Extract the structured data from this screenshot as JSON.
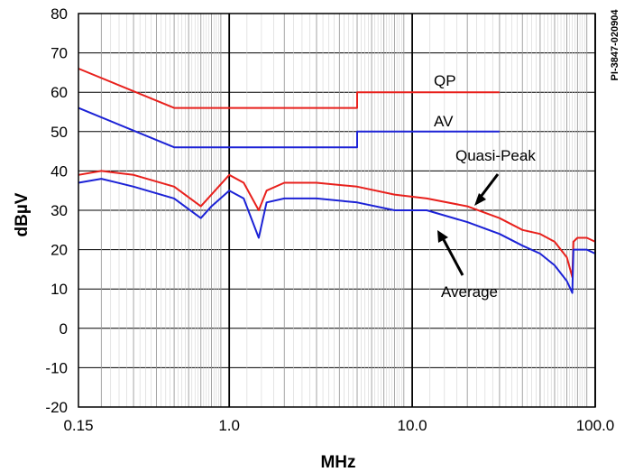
{
  "chart_data": {
    "type": "line",
    "xlabel": "MHz",
    "ylabel": "dBµV",
    "x_scale": "log",
    "xlim": [
      0.15,
      100.0
    ],
    "ylim": [
      -20,
      80
    ],
    "x_ticks": [
      0.15,
      1.0,
      10.0,
      100.0
    ],
    "x_tick_labels": [
      "0.15",
      "1.0",
      "10.0",
      "100.0"
    ],
    "y_ticks": [
      -20,
      -10,
      0,
      10,
      20,
      30,
      40,
      50,
      60,
      70,
      80
    ],
    "y_tick_labels": [
      "-20",
      "-10",
      "0",
      "10",
      "20",
      "30",
      "40",
      "50",
      "60",
      "70",
      "80"
    ],
    "grid": true,
    "figure_id": "PI-3847-020904",
    "series": [
      {
        "name": "QP",
        "color": "#e8201c",
        "x": [
          0.15,
          0.5,
          0.5,
          5.0,
          5.0,
          30.0
        ],
        "y": [
          66,
          56,
          56,
          56,
          60,
          60
        ]
      },
      {
        "name": "AV",
        "color": "#1c22d6",
        "x": [
          0.15,
          0.5,
          0.5,
          5.0,
          5.0,
          30.0
        ],
        "y": [
          56,
          46,
          46,
          46,
          50,
          50
        ]
      },
      {
        "name": "Quasi-Peak",
        "color": "#e8201c",
        "x": [
          0.15,
          0.2,
          0.3,
          0.5,
          0.7,
          0.8,
          1.0,
          1.2,
          1.45,
          1.6,
          2.0,
          3.0,
          5.0,
          8.0,
          12.0,
          20.0,
          30.0,
          40.0,
          50.0,
          60.0,
          70.0,
          75.0,
          76.0,
          80.0,
          90.0,
          100.0
        ],
        "y": [
          39,
          40,
          39,
          36,
          31,
          34,
          39,
          37,
          30,
          35,
          37,
          37,
          36,
          34,
          33,
          31,
          28,
          25,
          24,
          22,
          18,
          13,
          22,
          23,
          23,
          22
        ]
      },
      {
        "name": "Average",
        "color": "#1c22d6",
        "x": [
          0.15,
          0.2,
          0.3,
          0.5,
          0.7,
          0.8,
          1.0,
          1.2,
          1.45,
          1.6,
          2.0,
          3.0,
          5.0,
          8.0,
          12.0,
          20.0,
          30.0,
          40.0,
          50.0,
          60.0,
          70.0,
          75.0,
          76.0,
          80.0,
          90.0,
          100.0
        ],
        "y": [
          37,
          38,
          36,
          33,
          28,
          31,
          35,
          33,
          23,
          32,
          33,
          33,
          32,
          30,
          30,
          27,
          24,
          21,
          19,
          16,
          12,
          9,
          20,
          20,
          20,
          19
        ]
      }
    ],
    "annotations": [
      "QP",
      "AV",
      "Quasi-Peak",
      "Average"
    ]
  }
}
